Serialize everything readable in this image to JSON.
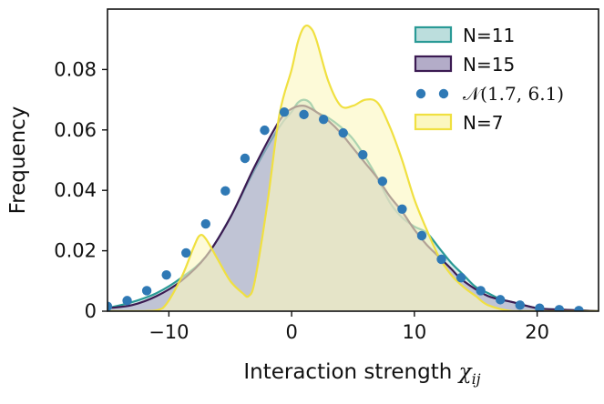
{
  "chart_data": {
    "type": "area",
    "xlabel": "Interaction strength ",
    "xlabel_symbol": "χ",
    "xlabel_subscript": "ij",
    "ylabel": "Frequency",
    "xlim": [
      -15,
      25
    ],
    "ylim": [
      0,
      0.1
    ],
    "xticks": [
      -10,
      0,
      10,
      20
    ],
    "xtick_labels": [
      "−10",
      "0",
      "10",
      "20"
    ],
    "yticks": [
      0,
      0.02,
      0.04,
      0.06,
      0.08
    ],
    "ytick_labels": [
      "0",
      "0.02",
      "0.04",
      "0.06",
      "0.08"
    ],
    "legend_position": "top-right",
    "series": [
      {
        "name": "N=11",
        "kind": "area",
        "stroke": "#2a9a96",
        "fill": "#bcdedd",
        "x": [
          -15,
          -13,
          -11,
          -9,
          -7,
          -5,
          -3,
          -1,
          0,
          0.5,
          1,
          1.5,
          2,
          3,
          4,
          5,
          6,
          7,
          8,
          9,
          10,
          11,
          12,
          13,
          14,
          15,
          16,
          17,
          18,
          20,
          22,
          25
        ],
        "y": [
          0.001,
          0.003,
          0.006,
          0.011,
          0.018,
          0.031,
          0.047,
          0.061,
          0.066,
          0.069,
          0.07,
          0.069,
          0.066,
          0.064,
          0.061,
          0.057,
          0.051,
          0.044,
          0.036,
          0.031,
          0.028,
          0.026,
          0.021,
          0.016,
          0.012,
          0.008,
          0.006,
          0.004,
          0.003,
          0.001,
          0.0005,
          0
        ]
      },
      {
        "name": "N=15",
        "kind": "area",
        "stroke": "#3b1a52",
        "fill": "#b3acc8",
        "x": [
          -15,
          -13,
          -11,
          -9,
          -7,
          -5,
          -3,
          -1,
          0,
          1,
          2,
          3,
          4,
          5,
          6,
          7,
          8,
          9,
          10,
          11,
          12,
          13,
          14,
          16,
          18,
          20,
          22,
          25
        ],
        "y": [
          0.001,
          0.002,
          0.005,
          0.01,
          0.018,
          0.031,
          0.048,
          0.063,
          0.067,
          0.068,
          0.066,
          0.063,
          0.059,
          0.054,
          0.049,
          0.044,
          0.038,
          0.033,
          0.027,
          0.022,
          0.018,
          0.014,
          0.01,
          0.005,
          0.003,
          0.001,
          0.0005,
          0
        ]
      },
      {
        "name": "N=7",
        "kind": "area",
        "stroke": "#f0e040",
        "fill": "#fbf7c0",
        "x": [
          -15,
          -12,
          -10.5,
          -9,
          -8,
          -7.5,
          -7,
          -6,
          -5,
          -4,
          -3.5,
          -3,
          -2,
          -1,
          0,
          0.5,
          1,
          1.5,
          2,
          3,
          4,
          5,
          6,
          7,
          8,
          9,
          10,
          11,
          12,
          13,
          14,
          15,
          16,
          18,
          20,
          25
        ],
        "y": [
          0,
          0,
          0.001,
          0.011,
          0.021,
          0.025,
          0.024,
          0.017,
          0.01,
          0.006,
          0.005,
          0.01,
          0.035,
          0.065,
          0.08,
          0.089,
          0.094,
          0.094,
          0.09,
          0.076,
          0.068,
          0.068,
          0.07,
          0.069,
          0.061,
          0.05,
          0.037,
          0.027,
          0.018,
          0.012,
          0.008,
          0.005,
          0.002,
          0,
          0,
          0
        ]
      },
      {
        "name": "𝒩(1.7, 6.1)",
        "kind": "scatter",
        "color": "#2f79b5",
        "mu": 1.7,
        "sigma": 6.1,
        "x": [
          -15,
          -13.4,
          -11.8,
          -10.2,
          -8.6,
          -7.0,
          -5.4,
          -3.8,
          -2.2,
          -0.6,
          1.0,
          2.6,
          4.2,
          5.8,
          7.4,
          9.0,
          10.6,
          12.2,
          13.8,
          15.4,
          17.0,
          18.6,
          20.2,
          21.8,
          23.4
        ],
        "y": [
          0.0016,
          0.0035,
          0.0068,
          0.012,
          0.0193,
          0.0289,
          0.0398,
          0.0506,
          0.0599,
          0.0659,
          0.0651,
          0.0635,
          0.059,
          0.0518,
          0.043,
          0.0338,
          0.025,
          0.0172,
          0.0111,
          0.0068,
          0.0038,
          0.002,
          0.001,
          0.0005,
          0.0002
        ]
      }
    ],
    "legend": [
      {
        "label": "N=11",
        "kind": "patch",
        "stroke": "#2a9a96",
        "fill": "#bcdedd"
      },
      {
        "label": "N=15",
        "kind": "patch",
        "stroke": "#3b1a52",
        "fill": "#b3acc8"
      },
      {
        "label": "𝒩(1.7, 6.1)",
        "kind": "dots",
        "color": "#2f79b5"
      },
      {
        "label": "N=7",
        "kind": "patch",
        "stroke": "#f0e040",
        "fill": "#fbf7c0"
      }
    ]
  }
}
